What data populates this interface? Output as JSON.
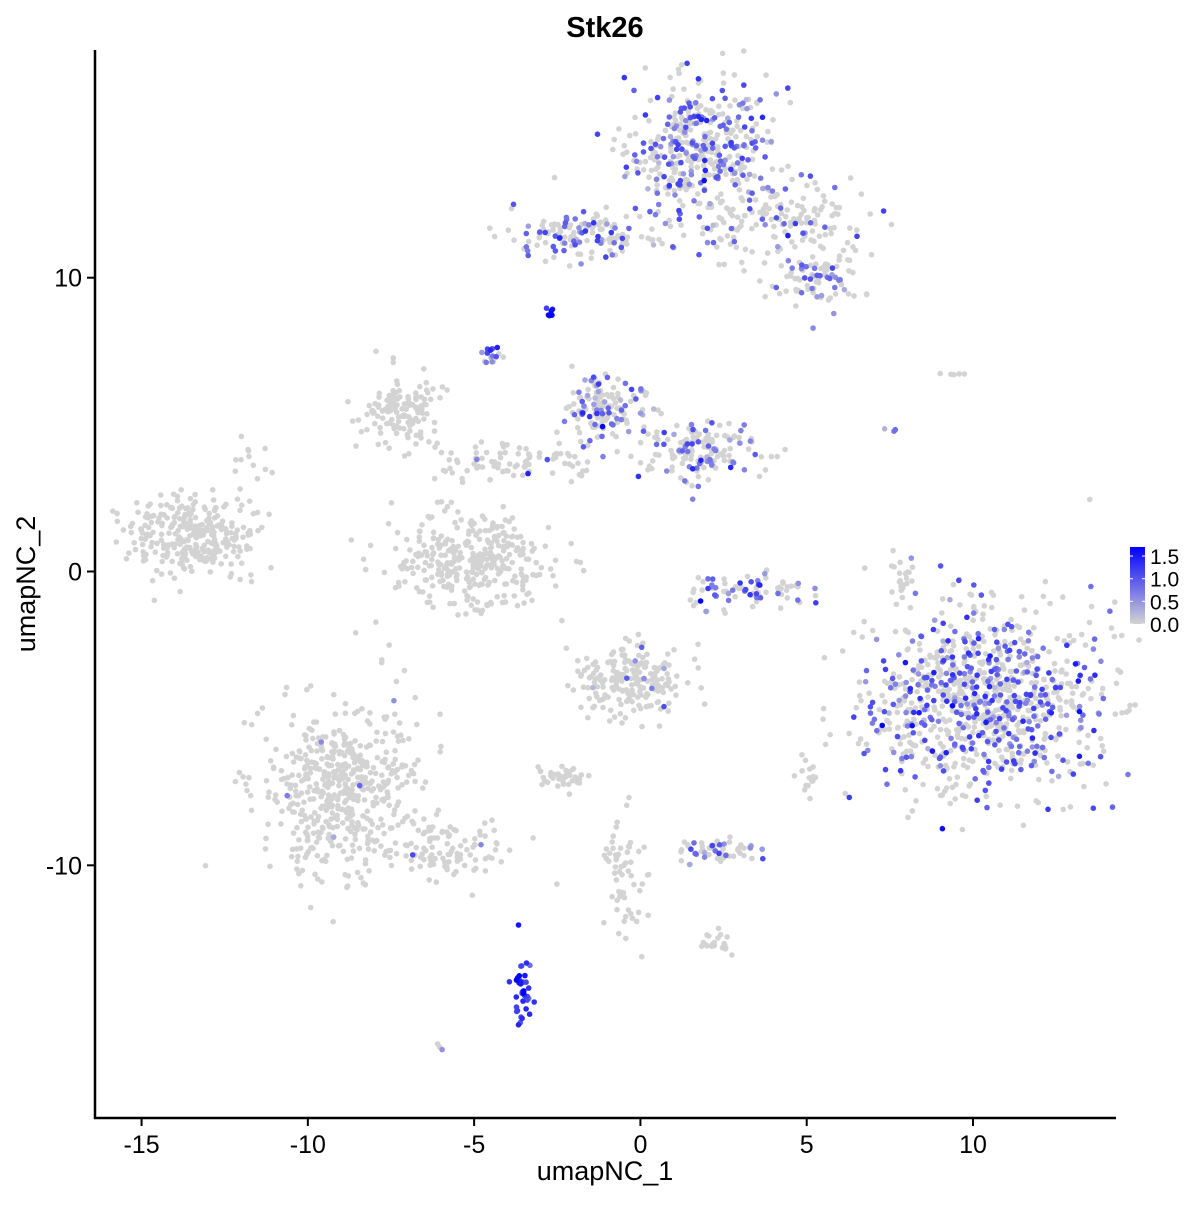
{
  "chart_data": {
    "type": "scatter",
    "title": "Stk26",
    "xlabel": "umapNC_1",
    "ylabel": "umapNC_2",
    "xlim": [
      -16.4,
      14.3
    ],
    "ylim": [
      -18.6,
      17.75
    ],
    "xticks": [
      -15,
      -10,
      -5,
      0,
      5,
      10
    ],
    "yticks": [
      -10,
      0,
      10
    ],
    "grid": false,
    "legend": {
      "placement": "right",
      "type": "colorbar",
      "ticks": [
        "0.0",
        "0.5",
        "1.0",
        "1.5"
      ],
      "tick_values": [
        0,
        0.5,
        1.0,
        1.5
      ],
      "range": [
        0,
        1.7
      ],
      "low_color": "#d3d3d3",
      "high_color": "#0000ff"
    },
    "clusters": [
      {
        "center": [
          1.84,
          14.34
        ],
        "sd": [
          1.1,
          1.1
        ],
        "n": 420,
        "expr_frac": 0.4,
        "expr_mean": 0.8
      },
      {
        "center": [
          4.24,
          11.96
        ],
        "sd": [
          1.3,
          0.8
        ],
        "n": 160,
        "expr_frac": 0.15,
        "expr_mean": 0.8
      },
      {
        "center": [
          5.3,
          9.9
        ],
        "sd": [
          0.7,
          0.5
        ],
        "n": 80,
        "expr_frac": 0.3,
        "expr_mean": 0.8
      },
      {
        "center": [
          -2.38,
          11.6
        ],
        "sd": [
          0.9,
          0.4
        ],
        "n": 100,
        "expr_frac": 0.4,
        "expr_mean": 0.9
      },
      {
        "center": [
          -0.57,
          11.3
        ],
        "sd": [
          1.0,
          0.3
        ],
        "n": 40,
        "expr_frac": 0.3,
        "expr_mean": 0.8
      },
      {
        "center": [
          -2.74,
          8.76
        ],
        "sd": [
          0.1,
          0.1
        ],
        "n": 6,
        "expr_frac": 1,
        "expr_mean": 1.5
      },
      {
        "center": [
          -4.54,
          7.36
        ],
        "sd": [
          0.15,
          0.2
        ],
        "n": 15,
        "expr_frac": 0.8,
        "expr_mean": 0.9
      },
      {
        "center": [
          -7.19,
          5.49
        ],
        "sd": [
          0.6,
          0.6
        ],
        "n": 130,
        "expr_frac": 0.0,
        "expr_mean": 0
      },
      {
        "center": [
          -1.17,
          5.49
        ],
        "sd": [
          0.6,
          0.6
        ],
        "n": 150,
        "expr_frac": 0.3,
        "expr_mean": 0.8
      },
      {
        "center": [
          1.84,
          4.12
        ],
        "sd": [
          0.8,
          0.5
        ],
        "n": 150,
        "expr_frac": 0.3,
        "expr_mean": 0.8
      },
      {
        "center": [
          -3.58,
          3.78
        ],
        "sd": [
          1.5,
          0.4
        ],
        "n": 90,
        "expr_frac": 0.05,
        "expr_mean": 0.7
      },
      {
        "center": [
          -5.08,
          0.37
        ],
        "sd": [
          1.2,
          0.8
        ],
        "n": 350,
        "expr_frac": 0.0,
        "expr_mean": 0
      },
      {
        "center": [
          -13.5,
          1.23
        ],
        "sd": [
          1.0,
          0.65
        ],
        "n": 300,
        "expr_frac": 0.0,
        "expr_mean": 0
      },
      {
        "center": [
          -11.7,
          3.44
        ],
        "sd": [
          0.3,
          0.6
        ],
        "n": 15,
        "expr_frac": 0.0,
        "expr_mean": 0
      },
      {
        "center": [
          3.19,
          -0.65
        ],
        "sd": [
          0.9,
          0.3
        ],
        "n": 80,
        "expr_frac": 0.3,
        "expr_mean": 0.9
      },
      {
        "center": [
          10.26,
          -4.4
        ],
        "sd": [
          1.7,
          1.6
        ],
        "n": 950,
        "expr_frac": 0.35,
        "expr_mean": 0.9
      },
      {
        "center": [
          -0.27,
          -3.71
        ],
        "sd": [
          0.8,
          0.6
        ],
        "n": 200,
        "expr_frac": 0.03,
        "expr_mean": 0.7
      },
      {
        "center": [
          -9.0,
          -7.46
        ],
        "sd": [
          1.2,
          1.5
        ],
        "n": 520,
        "expr_frac": 0.01,
        "expr_mean": 0.6
      },
      {
        "center": [
          -5.69,
          -9.5
        ],
        "sd": [
          1.0,
          0.5
        ],
        "n": 100,
        "expr_frac": 0.02,
        "expr_mean": 0.6
      },
      {
        "center": [
          -3.58,
          -14.3
        ],
        "sd": [
          0.15,
          0.6
        ],
        "n": 40,
        "expr_frac": 1.0,
        "expr_mean": 1.4
      },
      {
        "center": [
          -2.38,
          -6.95
        ],
        "sd": [
          0.4,
          0.2
        ],
        "n": 40,
        "expr_frac": 0.0,
        "expr_mean": 0
      },
      {
        "center": [
          2.29,
          -9.5
        ],
        "sd": [
          0.6,
          0.2
        ],
        "n": 60,
        "expr_frac": 0.3,
        "expr_mean": 0.8
      },
      {
        "center": [
          -0.57,
          -10.2
        ],
        "sd": [
          0.3,
          1.3
        ],
        "n": 60,
        "expr_frac": 0.0,
        "expr_mean": 0
      },
      {
        "center": [
          2.29,
          -12.6
        ],
        "sd": [
          0.3,
          0.2
        ],
        "n": 20,
        "expr_frac": 0.0,
        "expr_mean": 0
      },
      {
        "center": [
          7.85,
          -0.3
        ],
        "sd": [
          0.2,
          0.5
        ],
        "n": 20,
        "expr_frac": 0.0,
        "expr_mean": 0
      },
      {
        "center": [
          5.0,
          -7.1
        ],
        "sd": [
          0.2,
          0.3
        ],
        "n": 15,
        "expr_frac": 0.0,
        "expr_mean": 0
      },
      {
        "center": [
          9.36,
          6.75
        ],
        "sd": [
          0.2,
          0.05
        ],
        "n": 5,
        "expr_frac": 0.0,
        "expr_mean": 0
      },
      {
        "center": [
          -6.0,
          -16.1
        ],
        "sd": [
          0.1,
          0.1
        ],
        "n": 3,
        "expr_frac": 0.5,
        "expr_mean": 0.6
      },
      {
        "center": [
          7.55,
          4.8
        ],
        "sd": [
          0.2,
          0.2
        ],
        "n": 3,
        "expr_frac": 1.0,
        "expr_mean": 0.7
      }
    ]
  }
}
